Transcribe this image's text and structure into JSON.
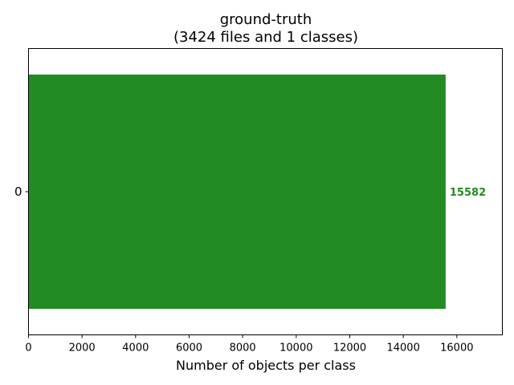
{
  "chart_data": {
    "type": "bar",
    "orientation": "horizontal",
    "title": "ground-truth",
    "subtitle": "(3424 files and 1 classes)",
    "xlabel": "Number of objects per class",
    "ylabel": "",
    "categories": [
      "0"
    ],
    "values": [
      15582
    ],
    "value_labels": [
      "15582"
    ],
    "xlim": [
      0,
      17700
    ],
    "xticks": [
      0,
      2000,
      4000,
      6000,
      8000,
      10000,
      12000,
      14000,
      16000
    ],
    "xtick_labels": [
      "0",
      "2000",
      "4000",
      "6000",
      "8000",
      "10000",
      "12000",
      "14000",
      "16000"
    ],
    "grid": false,
    "bar_color": "#228b22",
    "label_color": "#228b22"
  }
}
